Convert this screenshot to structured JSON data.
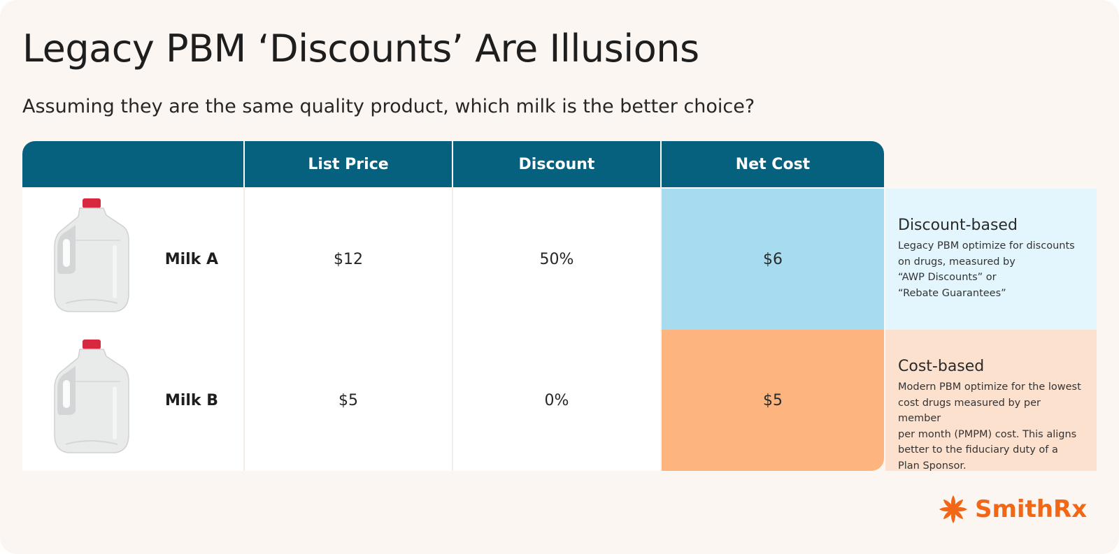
{
  "title": "Legacy PBM ‘Discounts’ Are Illusions",
  "subtitle": "Assuming they are the same quality product, which milk is the better choice?",
  "table": {
    "headers": [
      "",
      "List Price",
      "Discount",
      "Net Cost"
    ],
    "rows": [
      {
        "product": "Milk A",
        "list_price": "$12",
        "discount": "50%",
        "net_cost": "$6"
      },
      {
        "product": "Milk B",
        "list_price": "$5",
        "discount": "0%",
        "net_cost": "$5"
      }
    ]
  },
  "side_notes": [
    {
      "heading": "Discount-based",
      "lines": [
        "Legacy PBM optimize for discounts",
        "on drugs, measured by",
        "“AWP Discounts” or",
        "“Rebate Guarantees”"
      ]
    },
    {
      "heading": "Cost-based",
      "lines": [
        "Modern PBM optimize for the lowest",
        "cost drugs measured by per member",
        "per month (PMPM) cost. This aligns",
        "better to the fiduciary duty of a",
        "Plan Sponsor."
      ]
    }
  ],
  "logo": {
    "text": "SmithRx",
    "icon": "smithrx-pinwheel-icon"
  },
  "colors": {
    "header_bg": "#06617f",
    "net_a": "#a6dbf0",
    "net_b": "#fdb47f",
    "note_a": "#e3f6fd",
    "note_b": "#fde1cf",
    "brand": "#f26716",
    "background": "#fcf6f2"
  },
  "icons": [
    "milk-jug-icon"
  ]
}
